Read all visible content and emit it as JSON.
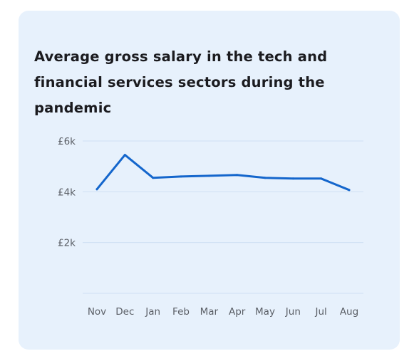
{
  "colors": {
    "card_background": "#e7f1fc",
    "line": "#1466cc",
    "gridline": "#cfe0f3",
    "title": "#1b1b1f",
    "tick_label": "#5b5f66"
  },
  "chart_data": {
    "type": "line",
    "title": "Average gross salary in the tech and financial services sectors during the pandemic",
    "xlabel": "",
    "ylabel": "",
    "categories": [
      "Nov",
      "Dec",
      "Jan",
      "Feb",
      "Mar",
      "Apr",
      "May",
      "Jun",
      "Jul",
      "Aug"
    ],
    "series": [
      {
        "values": [
          4100,
          5450,
          4550,
          4600,
          4630,
          4660,
          4550,
          4520,
          4520,
          4070
        ]
      }
    ],
    "ylim": [
      0,
      6000
    ],
    "yticks": [
      {
        "value": 2000,
        "label": "£2k"
      },
      {
        "value": 4000,
        "label": "£4k"
      },
      {
        "value": 6000,
        "label": "£6k"
      }
    ],
    "grid": true,
    "legend": "none"
  }
}
